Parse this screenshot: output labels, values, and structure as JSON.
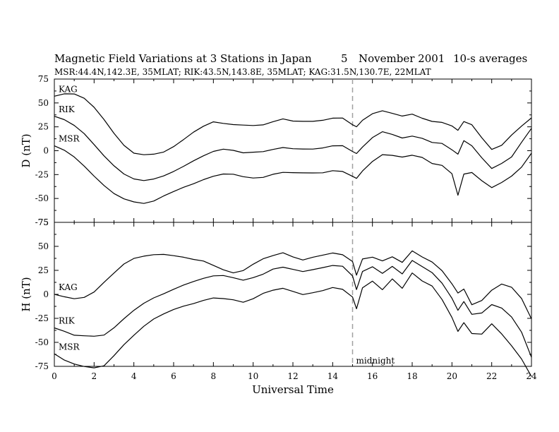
{
  "header": {
    "title": "Magnetic Field Variations at 3 Stations in Japan",
    "day": "5",
    "month_year": "November 2001",
    "averaging": "10-s averages",
    "stations": "MSR:44.4N,142.3E, 35MLAT;   RIK:43.5N,143.8E, 35MLAT;   KAG:31.5N,130.7E, 22MLAT"
  },
  "colors": {
    "trace": "#000000",
    "axis": "#000000",
    "midnight_line": "#a0a0a0"
  },
  "chart_data": [
    {
      "type": "line",
      "ylabel": "D (nT)",
      "ylim": [
        -75,
        75
      ],
      "yticks": [
        75,
        50,
        25,
        0,
        -25,
        -50,
        -75
      ],
      "xlim": [
        0,
        24
      ],
      "grid": false,
      "series": [
        {
          "name": "KAG",
          "x": [
            0,
            0.5,
            1,
            1.5,
            2,
            2.5,
            3,
            3.5,
            4,
            4.5,
            5,
            5.5,
            6,
            6.5,
            7,
            7.5,
            8,
            8.5,
            9,
            9.5,
            10,
            10.5,
            11,
            11.5,
            12,
            12.5,
            13,
            13.5,
            14,
            14.5,
            15,
            15.2,
            15.5,
            16,
            16.5,
            17,
            17.5,
            18,
            18.5,
            19,
            19.5,
            20,
            20.3,
            20.6,
            21,
            21.5,
            22,
            22.5,
            23,
            23.5,
            24
          ],
          "y": [
            57,
            60,
            60,
            55,
            45,
            32,
            18,
            6,
            -2,
            -4,
            -4,
            -2,
            4,
            12,
            20,
            26,
            30,
            28,
            27,
            27,
            27,
            28,
            30,
            32,
            30,
            31,
            32,
            33,
            34,
            33,
            26,
            25,
            33,
            40,
            42,
            38,
            35,
            38,
            35,
            32,
            30,
            25,
            20,
            30,
            28,
            15,
            2,
            5,
            15,
            25,
            35
          ]
        },
        {
          "name": "RIK",
          "x": [
            0,
            0.5,
            1,
            1.5,
            2,
            2.5,
            3,
            3.5,
            4,
            4.5,
            5,
            5.5,
            6,
            6.5,
            7,
            7.5,
            8,
            8.5,
            9,
            9.5,
            10,
            10.5,
            11,
            11.5,
            12,
            12.5,
            13,
            13.5,
            14,
            14.5,
            15,
            15.2,
            15.5,
            16,
            16.5,
            17,
            17.5,
            18,
            18.5,
            19,
            19.5,
            20,
            20.3,
            20.6,
            21,
            21.5,
            22,
            22.5,
            23,
            23.5,
            24
          ],
          "y": [
            36,
            33,
            27,
            18,
            6,
            -6,
            -16,
            -24,
            -29,
            -31,
            -30,
            -27,
            -22,
            -16,
            -10,
            -5,
            -1,
            1,
            0,
            -2,
            -1,
            0,
            1,
            2,
            1,
            2,
            3,
            4,
            5,
            4,
            -2,
            -3,
            5,
            15,
            20,
            16,
            12,
            15,
            14,
            10,
            8,
            0,
            -5,
            10,
            6,
            -6,
            -18,
            -14,
            -8,
            8,
            24
          ]
        },
        {
          "name": "MSR",
          "x": [
            0,
            0.5,
            1,
            1.5,
            2,
            2.5,
            3,
            3.5,
            4,
            4.5,
            5,
            5.5,
            6,
            6.5,
            7,
            7.5,
            8,
            8.5,
            9,
            9.5,
            10,
            10.5,
            11,
            11.5,
            12,
            12.5,
            13,
            13.5,
            14,
            14.5,
            15,
            15.2,
            15.5,
            16,
            16.5,
            17,
            17.5,
            18,
            18.5,
            19,
            19.5,
            20,
            20.3,
            20.6,
            21,
            21.5,
            22,
            22.5,
            23,
            23.5,
            24
          ],
          "y": [
            5,
            1,
            -6,
            -16,
            -27,
            -37,
            -45,
            -50,
            -53,
            -55,
            -53,
            -48,
            -43,
            -38,
            -34,
            -30,
            -27,
            -25,
            -25,
            -27,
            -28,
            -27,
            -25,
            -24,
            -24,
            -23,
            -22,
            -22,
            -21,
            -23,
            -28,
            -29,
            -20,
            -10,
            -4,
            -6,
            -8,
            -5,
            -6,
            -12,
            -15,
            -25,
            -48,
            -25,
            -22,
            -30,
            -38,
            -34,
            -28,
            -18,
            -2
          ]
        }
      ]
    },
    {
      "type": "line",
      "ylabel": "H (nT)",
      "ylim": [
        -75,
        75
      ],
      "yticks": [
        75,
        50,
        25,
        0,
        -25,
        -50,
        -75
      ],
      "xlim": [
        0,
        24
      ],
      "xlabel": "Universal Time",
      "xticks": [
        0,
        2,
        4,
        6,
        8,
        10,
        12,
        14,
        16,
        18,
        20,
        22,
        24
      ],
      "annotation": "midnight",
      "midnight_ut": 15,
      "grid": false,
      "series": [
        {
          "name": "KAG",
          "x": [
            0,
            0.5,
            1,
            1.5,
            2,
            2.5,
            3,
            3.5,
            4,
            4.5,
            5,
            5.5,
            6,
            6.5,
            7,
            7.5,
            8,
            8.5,
            9,
            9.5,
            10,
            10.5,
            11,
            11.5,
            12,
            12.5,
            13,
            13.5,
            14,
            14.5,
            15,
            15.2,
            15.5,
            16,
            16.5,
            17,
            17.5,
            18,
            18.5,
            19,
            19.5,
            20,
            20.3,
            20.6,
            21,
            21.5,
            22,
            22.5,
            23,
            23.5,
            24
          ],
          "y": [
            0,
            -2,
            -4,
            -3,
            2,
            12,
            22,
            32,
            38,
            40,
            41,
            41,
            40,
            39,
            37,
            35,
            30,
            25,
            22,
            25,
            32,
            38,
            40,
            42,
            38,
            36,
            40,
            42,
            43,
            40,
            33,
            20,
            38,
            40,
            35,
            38,
            32,
            45,
            40,
            35,
            25,
            10,
            0,
            5,
            -10,
            -5,
            5,
            10,
            6,
            -5,
            -25
          ]
        },
        {
          "name": "RIK",
          "x": [
            0,
            0.5,
            1,
            1.5,
            2,
            2.5,
            3,
            3.5,
            4,
            4.5,
            5,
            5.5,
            6,
            6.5,
            7,
            7.5,
            8,
            8.5,
            9,
            9.5,
            10,
            10.5,
            11,
            11.5,
            12,
            12.5,
            13,
            13.5,
            14,
            14.5,
            15,
            15.2,
            15.5,
            16,
            16.5,
            17,
            17.5,
            18,
            18.5,
            19,
            19.5,
            20,
            20.3,
            20.6,
            21,
            21.5,
            22,
            22.5,
            23,
            23.5,
            24
          ],
          "y": [
            -35,
            -38,
            -42,
            -43,
            -44,
            -43,
            -35,
            -25,
            -16,
            -9,
            -4,
            0,
            5,
            10,
            14,
            17,
            19,
            19,
            17,
            15,
            18,
            22,
            26,
            27,
            25,
            24,
            27,
            29,
            30,
            28,
            18,
            5,
            25,
            30,
            22,
            28,
            20,
            35,
            30,
            24,
            12,
            -5,
            -18,
            -8,
            -20,
            -18,
            -10,
            -15,
            -25,
            -40,
            -65
          ]
        },
        {
          "name": "MSR",
          "x": [
            0,
            0.5,
            1,
            1.5,
            2,
            2.5,
            3,
            3.5,
            4,
            4.5,
            5,
            5.5,
            6,
            6.5,
            7,
            7.5,
            8,
            8.5,
            9,
            9.5,
            10,
            10.5,
            11,
            11.5,
            12,
            12.5,
            13,
            13.5,
            14,
            14.5,
            15,
            15.2,
            15.5,
            16,
            16.5,
            17,
            17.5,
            18,
            18.5,
            19,
            19.5,
            20,
            20.3,
            20.6,
            21,
            21.5,
            22,
            22.5,
            23,
            23.5,
            24
          ],
          "y": [
            -62,
            -68,
            -72,
            -75,
            -77,
            -75,
            -64,
            -52,
            -42,
            -33,
            -26,
            -21,
            -16,
            -12,
            -9,
            -6,
            -4,
            -5,
            -6,
            -8,
            -4,
            2,
            4,
            5,
            2,
            0,
            3,
            5,
            7,
            4,
            -4,
            -15,
            8,
            15,
            5,
            15,
            5,
            22,
            15,
            10,
            -5,
            -25,
            -40,
            -30,
            -40,
            -40,
            -30,
            -42,
            -55,
            -68,
            -85
          ]
        }
      ]
    }
  ]
}
